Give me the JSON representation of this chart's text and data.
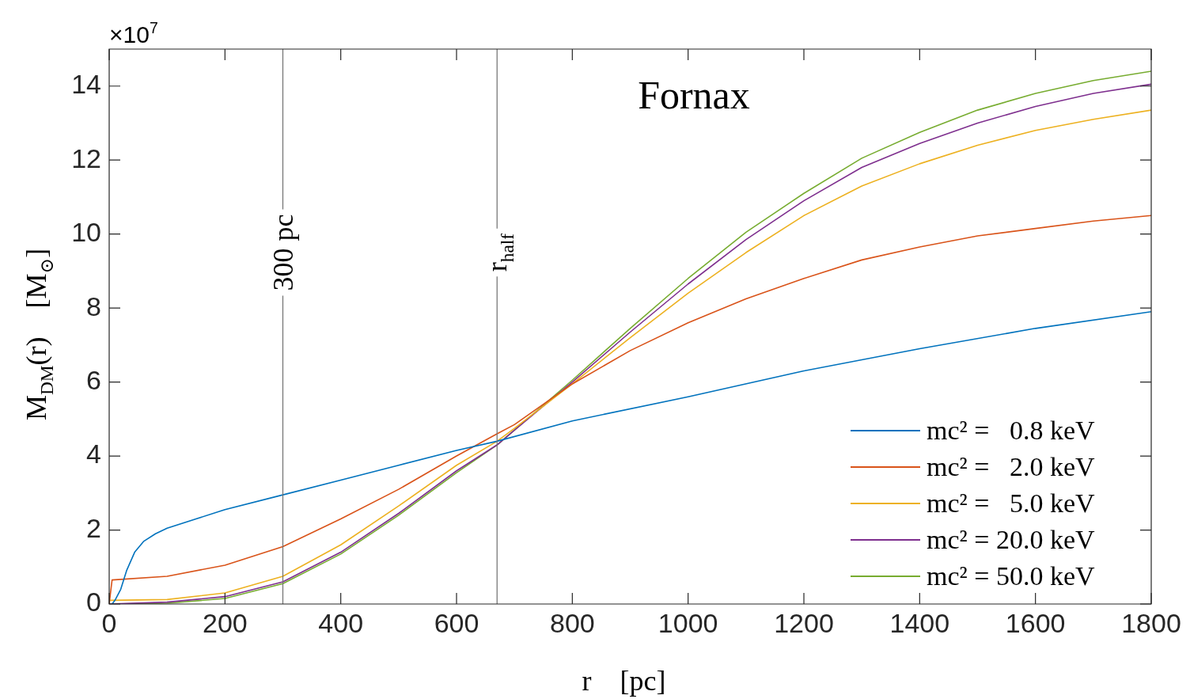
{
  "chart_data": {
    "type": "line",
    "xlabel": "r    [pc]",
    "ylabel": "M$_{DM}$(r)    [M$_{⊙}$]",
    "annotations": [
      "Fornax",
      "×10$^{7}$"
    ],
    "xlim": [
      0,
      1800
    ],
    "xticks": [
      0,
      200,
      400,
      600,
      800,
      1000,
      1200,
      1400,
      1600,
      1800
    ],
    "ylim": [
      0,
      15
    ],
    "yticks": [
      0,
      2,
      4,
      6,
      8,
      10,
      12,
      14
    ],
    "grid": false,
    "legend": "bottom right",
    "marker": "none",
    "line_style": "solid",
    "ref_lines": [
      {
        "axis": "x",
        "value": 300,
        "label": "300 pc",
        "color": "#707070"
      },
      {
        "axis": "x",
        "value": 670,
        "label": "r$_{half}$",
        "color": "#707070"
      }
    ],
    "series": [
      {
        "name": "mc² =   0.8 keV",
        "color": "#0072bd",
        "x": [
          5,
          10,
          20,
          30,
          44,
          60,
          80,
          100,
          150,
          200,
          300,
          400,
          500,
          600,
          670,
          800,
          1000,
          1200,
          1400,
          1600,
          1800
        ],
        "values": [
          0,
          0.1,
          0.4,
          0.9,
          1.4,
          1.7,
          1.9,
          2.05,
          2.3,
          2.55,
          2.95,
          3.35,
          3.75,
          4.15,
          4.4,
          4.95,
          5.6,
          6.3,
          6.9,
          7.45,
          7.9
        ]
      },
      {
        "name": "mc² =   2.0 keV",
        "color": "#d95319",
        "x": [
          0,
          5,
          100,
          200,
          300,
          400,
          500,
          600,
          670,
          700,
          800,
          900,
          1000,
          1100,
          1200,
          1300,
          1400,
          1500,
          1600,
          1700,
          1800
        ],
        "values": [
          0,
          0.65,
          0.75,
          1.05,
          1.55,
          2.3,
          3.1,
          4.0,
          4.6,
          4.85,
          5.95,
          6.85,
          7.6,
          8.25,
          8.8,
          9.3,
          9.65,
          9.95,
          10.15,
          10.35,
          10.5
        ]
      },
      {
        "name": "mc² =   5.0 keV",
        "color": "#edb120",
        "x": [
          0,
          100,
          200,
          300,
          400,
          500,
          600,
          670,
          700,
          800,
          900,
          1000,
          1100,
          1200,
          1300,
          1400,
          1500,
          1600,
          1700,
          1800
        ],
        "values": [
          0.1,
          0.12,
          0.3,
          0.75,
          1.6,
          2.65,
          3.75,
          4.4,
          4.75,
          5.95,
          7.2,
          8.4,
          9.5,
          10.5,
          11.3,
          11.9,
          12.4,
          12.8,
          13.1,
          13.35
        ]
      },
      {
        "name": "mc² = 20.0 keV",
        "color": "#7e2f8e",
        "x": [
          0,
          100,
          200,
          300,
          400,
          500,
          600,
          670,
          700,
          800,
          900,
          1000,
          1100,
          1200,
          1300,
          1400,
          1500,
          1600,
          1700,
          1800
        ],
        "values": [
          0,
          0.05,
          0.2,
          0.6,
          1.4,
          2.45,
          3.6,
          4.3,
          4.7,
          6.0,
          7.35,
          8.65,
          9.85,
          10.9,
          11.8,
          12.45,
          13.0,
          13.45,
          13.8,
          14.05
        ]
      },
      {
        "name": "mc² = 50.0 keV",
        "color": "#77ac30",
        "x": [
          0,
          100,
          200,
          300,
          400,
          500,
          600,
          670,
          700,
          800,
          900,
          1000,
          1100,
          1200,
          1300,
          1400,
          1500,
          1600,
          1700,
          1800
        ],
        "values": [
          0,
          0.02,
          0.15,
          0.55,
          1.35,
          2.4,
          3.55,
          4.3,
          4.7,
          6.05,
          7.45,
          8.8,
          10.05,
          11.1,
          12.05,
          12.75,
          13.35,
          13.8,
          14.15,
          14.4
        ]
      }
    ]
  }
}
